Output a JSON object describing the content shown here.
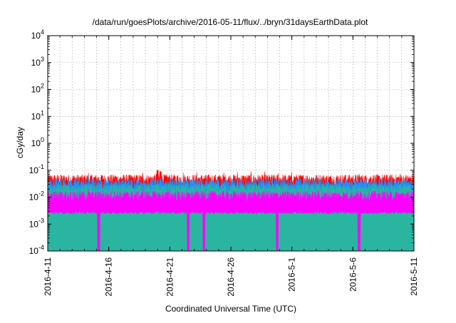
{
  "chart_data": {
    "type": "area",
    "title": "/data/run/goesPlots/archive/2016-05-11/flux/../bryn/31daysEarthData.plot",
    "xlabel": "Coordinated Universal Time (UTC)",
    "ylabel": "cGy/day",
    "x_axis": {
      "type": "date",
      "range": [
        "2016-04-11",
        "2016-05-11"
      ],
      "ticks": [
        {
          "date": "2016-04-11",
          "label": "2016-4-11"
        },
        {
          "date": "2016-04-16",
          "label": "2016-4-16"
        },
        {
          "date": "2016-04-21",
          "label": "2016-4-21"
        },
        {
          "date": "2016-04-26",
          "label": "2016-4-26"
        },
        {
          "date": "2016-05-01",
          "label": "2016-5-1"
        },
        {
          "date": "2016-05-06",
          "label": "2016-5-6"
        },
        {
          "date": "2016-05-11",
          "label": "2016-5-11"
        }
      ]
    },
    "y_axis": {
      "scale": "log",
      "range": [
        0.0001,
        10000
      ],
      "ticks": [
        {
          "value": 0.0001,
          "base": "10",
          "exp": "-4"
        },
        {
          "value": 0.001,
          "base": "10",
          "exp": "-3"
        },
        {
          "value": 0.01,
          "base": "10",
          "exp": "-2"
        },
        {
          "value": 0.1,
          "base": "10",
          "exp": "-1"
        },
        {
          "value": 1,
          "base": "10",
          "exp": "0"
        },
        {
          "value": 10,
          "base": "10",
          "exp": "1"
        },
        {
          "value": 100,
          "base": "10",
          "exp": "2"
        },
        {
          "value": 1000,
          "base": "10",
          "exp": "3"
        },
        {
          "value": 10000,
          "base": "10",
          "exp": "4"
        }
      ]
    },
    "grid": true,
    "series": [
      {
        "color": "#ff0000",
        "approx_level": 0.05
      },
      {
        "color": "#1e90ff",
        "approx_level": 0.035
      },
      {
        "color": "#2ab5a0",
        "approx_level": 0.022
      },
      {
        "color": "#ff00ff",
        "approx_level": 0.012,
        "floor": 0.003
      }
    ],
    "spikes": [
      {
        "date": "2016-04-20T00:00",
        "value": 0.1
      },
      {
        "date": "2016-04-20T06:00",
        "value": 0.09
      }
    ],
    "dropouts": [
      {
        "date": "2016-04-15T04:00"
      },
      {
        "date": "2016-04-22T12:00"
      },
      {
        "date": "2016-04-23T19:00"
      },
      {
        "date": "2016-04-29T19:00"
      },
      {
        "date": "2016-05-06T12:00"
      }
    ]
  }
}
